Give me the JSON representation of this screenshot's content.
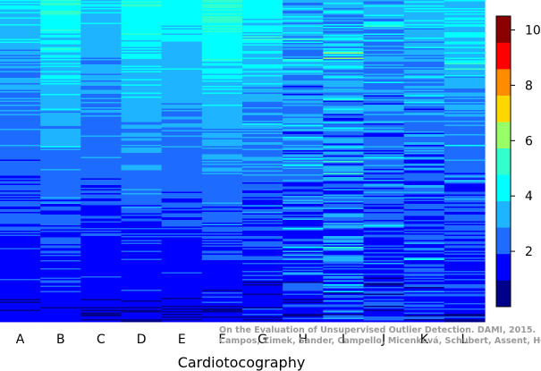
{
  "chart_data": {
    "type": "heatmap",
    "title": "",
    "xlabel": "Cardiotocography",
    "ylabel": "",
    "columns": [
      "A",
      "B",
      "C",
      "D",
      "E",
      "F",
      "G",
      "H",
      "I",
      "J",
      "K",
      "L"
    ],
    "column_profiles": [
      {
        "column": "A",
        "top_score": 3.9,
        "bottom_score": 1.2,
        "noise": 0.5
      },
      {
        "column": "B",
        "top_score": 4.9,
        "bottom_score": 1.3,
        "noise": 0.5
      },
      {
        "column": "C",
        "top_score": 4.1,
        "bottom_score": 1.0,
        "noise": 0.35
      },
      {
        "column": "D",
        "top_score": 5.0,
        "bottom_score": 1.1,
        "noise": 0.4
      },
      {
        "column": "E",
        "top_score": 4.6,
        "bottom_score": 1.0,
        "noise": 0.25
      },
      {
        "column": "F",
        "top_score": 5.3,
        "bottom_score": 1.1,
        "noise": 0.45
      },
      {
        "column": "G",
        "top_score": 4.7,
        "bottom_score": 1.2,
        "noise": 0.6
      },
      {
        "column": "H",
        "top_score": 3.6,
        "bottom_score": 1.8,
        "noise": 1.1
      },
      {
        "column": "I",
        "top_score": 3.8,
        "bottom_score": 1.9,
        "noise": 1.2
      },
      {
        "column": "J",
        "top_score": 3.6,
        "bottom_score": 1.6,
        "noise": 1.0
      },
      {
        "column": "K",
        "top_score": 3.7,
        "bottom_score": 1.6,
        "noise": 0.9
      },
      {
        "column": "L",
        "top_score": 4.3,
        "bottom_score": 1.4,
        "noise": 0.7
      }
    ],
    "value_range": [
      0,
      10.5
    ],
    "colorbar": {
      "ticks": [
        2,
        4,
        6,
        8,
        10
      ],
      "colors": [
        "#00008b",
        "#0000ff",
        "#1e6bff",
        "#1eb4ff",
        "#00ffff",
        "#33ffcc",
        "#99ff66",
        "#ffd700",
        "#ff8c00",
        "#ff0000",
        "#8b0000"
      ]
    },
    "legend_placement": "right",
    "credit": [
      "On the Evaluation of Unsupervised Outlier Detection. DAMI, 2015.",
      "Campos, Zimek, Sander, Campello, Micenková, Schubert, Assent, Houle"
    ]
  }
}
